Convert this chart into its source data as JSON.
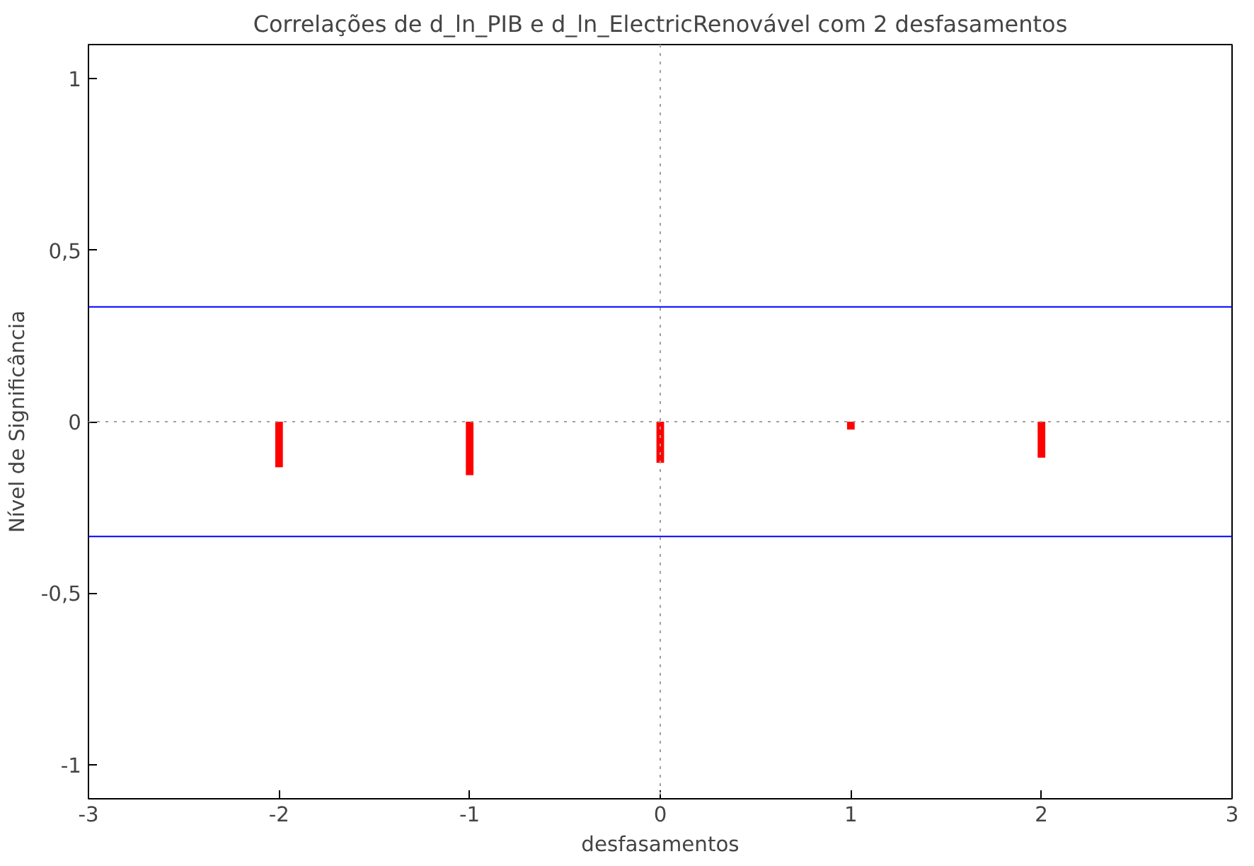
{
  "chart_data": {
    "type": "bar",
    "title": "Correlações de d_ln_PIB e d_ln_ElectricRenovável com 2 desfasamentos",
    "xlabel": "desfasamentos",
    "ylabel": "Nível de Significância",
    "x": [
      -2,
      -1,
      0,
      1,
      2
    ],
    "series": [
      {
        "color": "#ff0000",
        "values": [
          -0.133,
          -0.156,
          -0.12,
          -0.023,
          -0.105
        ]
      }
    ],
    "xlim": [
      -3,
      3
    ],
    "xticks": [
      -3,
      -2,
      -1,
      0,
      1,
      2,
      3
    ],
    "ylim": [
      -1.1,
      1.1
    ],
    "yticks": [
      {
        "value": -1,
        "label": "-1"
      },
      {
        "value": -0.5,
        "label": "-0,5"
      },
      {
        "value": 0,
        "label": "0"
      },
      {
        "value": 0.5,
        "label": "0,5"
      },
      {
        "value": 1,
        "label": "1"
      }
    ],
    "ref_lines": [
      {
        "axis": "y",
        "value": 0.335,
        "color": "#0000ff",
        "line_style": "solid"
      },
      {
        "axis": "y",
        "value": -0.335,
        "color": "#0000ff",
        "line_style": "solid"
      },
      {
        "axis": "y",
        "value": 0,
        "color": "#a0a0a0",
        "line_style": "dotted"
      },
      {
        "axis": "x",
        "value": 0,
        "color": "#a0a0a0",
        "line_style": "dotted"
      }
    ],
    "grid": false
  }
}
